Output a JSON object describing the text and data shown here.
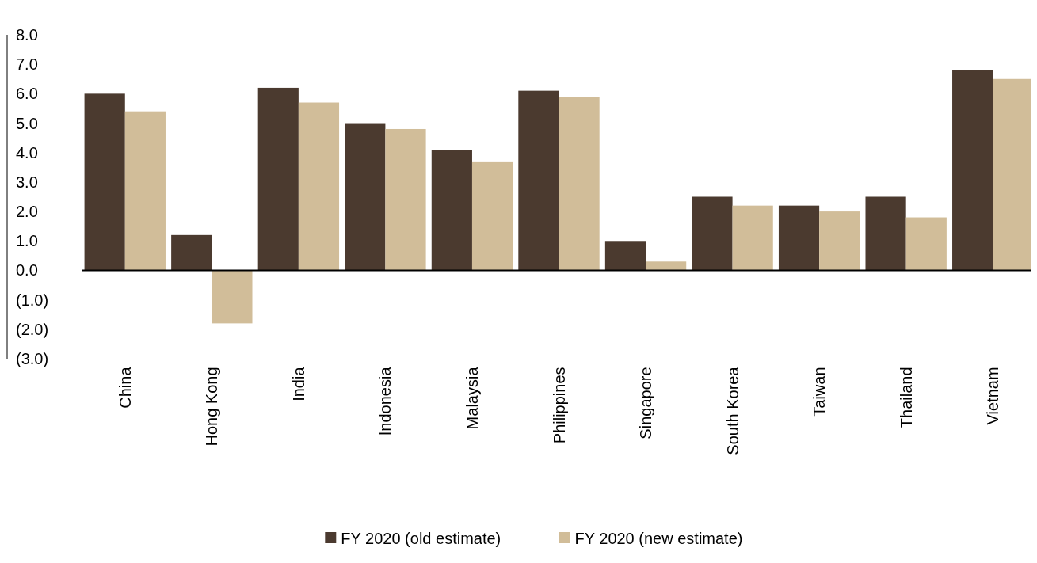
{
  "chart_data": {
    "type": "bar",
    "categories": [
      "China",
      "Hong Kong",
      "India",
      "Indonesia",
      "Malaysia",
      "Philippines",
      "Singapore",
      "South Korea",
      "Taiwan",
      "Thailand",
      "Vietnam"
    ],
    "series": [
      {
        "name": "FY 2020 (old estimate)",
        "color": "#4b3a2f",
        "values": [
          6.0,
          1.2,
          6.2,
          5.0,
          4.1,
          6.1,
          1.0,
          2.5,
          2.2,
          2.5,
          6.8
        ]
      },
      {
        "name": "FY 2020 (new estimate)",
        "color": "#d1bd99",
        "values": [
          5.4,
          -1.8,
          5.7,
          4.8,
          3.7,
          5.9,
          0.3,
          2.2,
          2.0,
          1.8,
          6.5
        ]
      }
    ],
    "ylim": [
      -3,
      8
    ],
    "yticks": [
      {
        "value": -3,
        "label": "(3.0)"
      },
      {
        "value": -2,
        "label": "(2.0)"
      },
      {
        "value": -1,
        "label": "(1.0)"
      },
      {
        "value": 0,
        "label": "0.0"
      },
      {
        "value": 1,
        "label": "1.0"
      },
      {
        "value": 2,
        "label": "2.0"
      },
      {
        "value": 3,
        "label": "3.0"
      },
      {
        "value": 4,
        "label": "4.0"
      },
      {
        "value": 5,
        "label": "5.0"
      },
      {
        "value": 6,
        "label": "6.0"
      },
      {
        "value": 7,
        "label": "7.0"
      },
      {
        "value": 8,
        "label": "8.0"
      }
    ],
    "legend": "bottom"
  }
}
